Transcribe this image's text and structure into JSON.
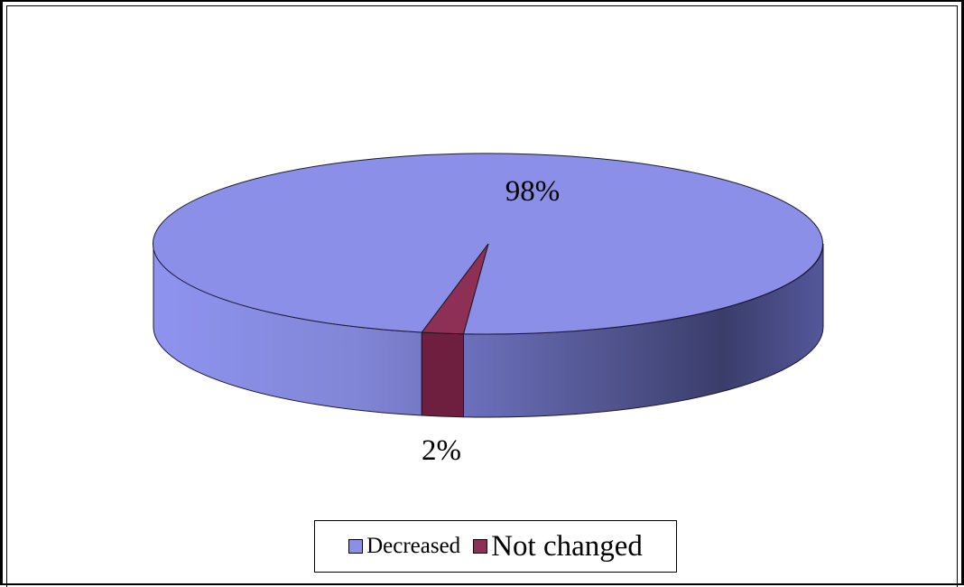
{
  "chart_data": {
    "type": "pie",
    "style": "3d",
    "categories": [
      "Decreased",
      "Not changed"
    ],
    "values": [
      98,
      2
    ],
    "data_labels": [
      "98%",
      "2%"
    ],
    "colors": [
      "#8B8FE8",
      "#8E2F55"
    ],
    "title": "",
    "legend_position": "bottom"
  }
}
